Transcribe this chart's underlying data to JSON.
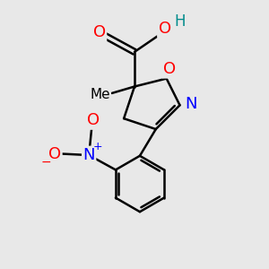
{
  "background_color": "#e8e8e8",
  "bond_color": "#000000",
  "bond_width": 1.8,
  "atom_colors": {
    "O": "#ff0000",
    "N": "#0000ff",
    "C": "#000000",
    "H": "#008b8b"
  },
  "font_size": 12,
  "fig_size": [
    3.0,
    3.0
  ],
  "dpi": 100
}
